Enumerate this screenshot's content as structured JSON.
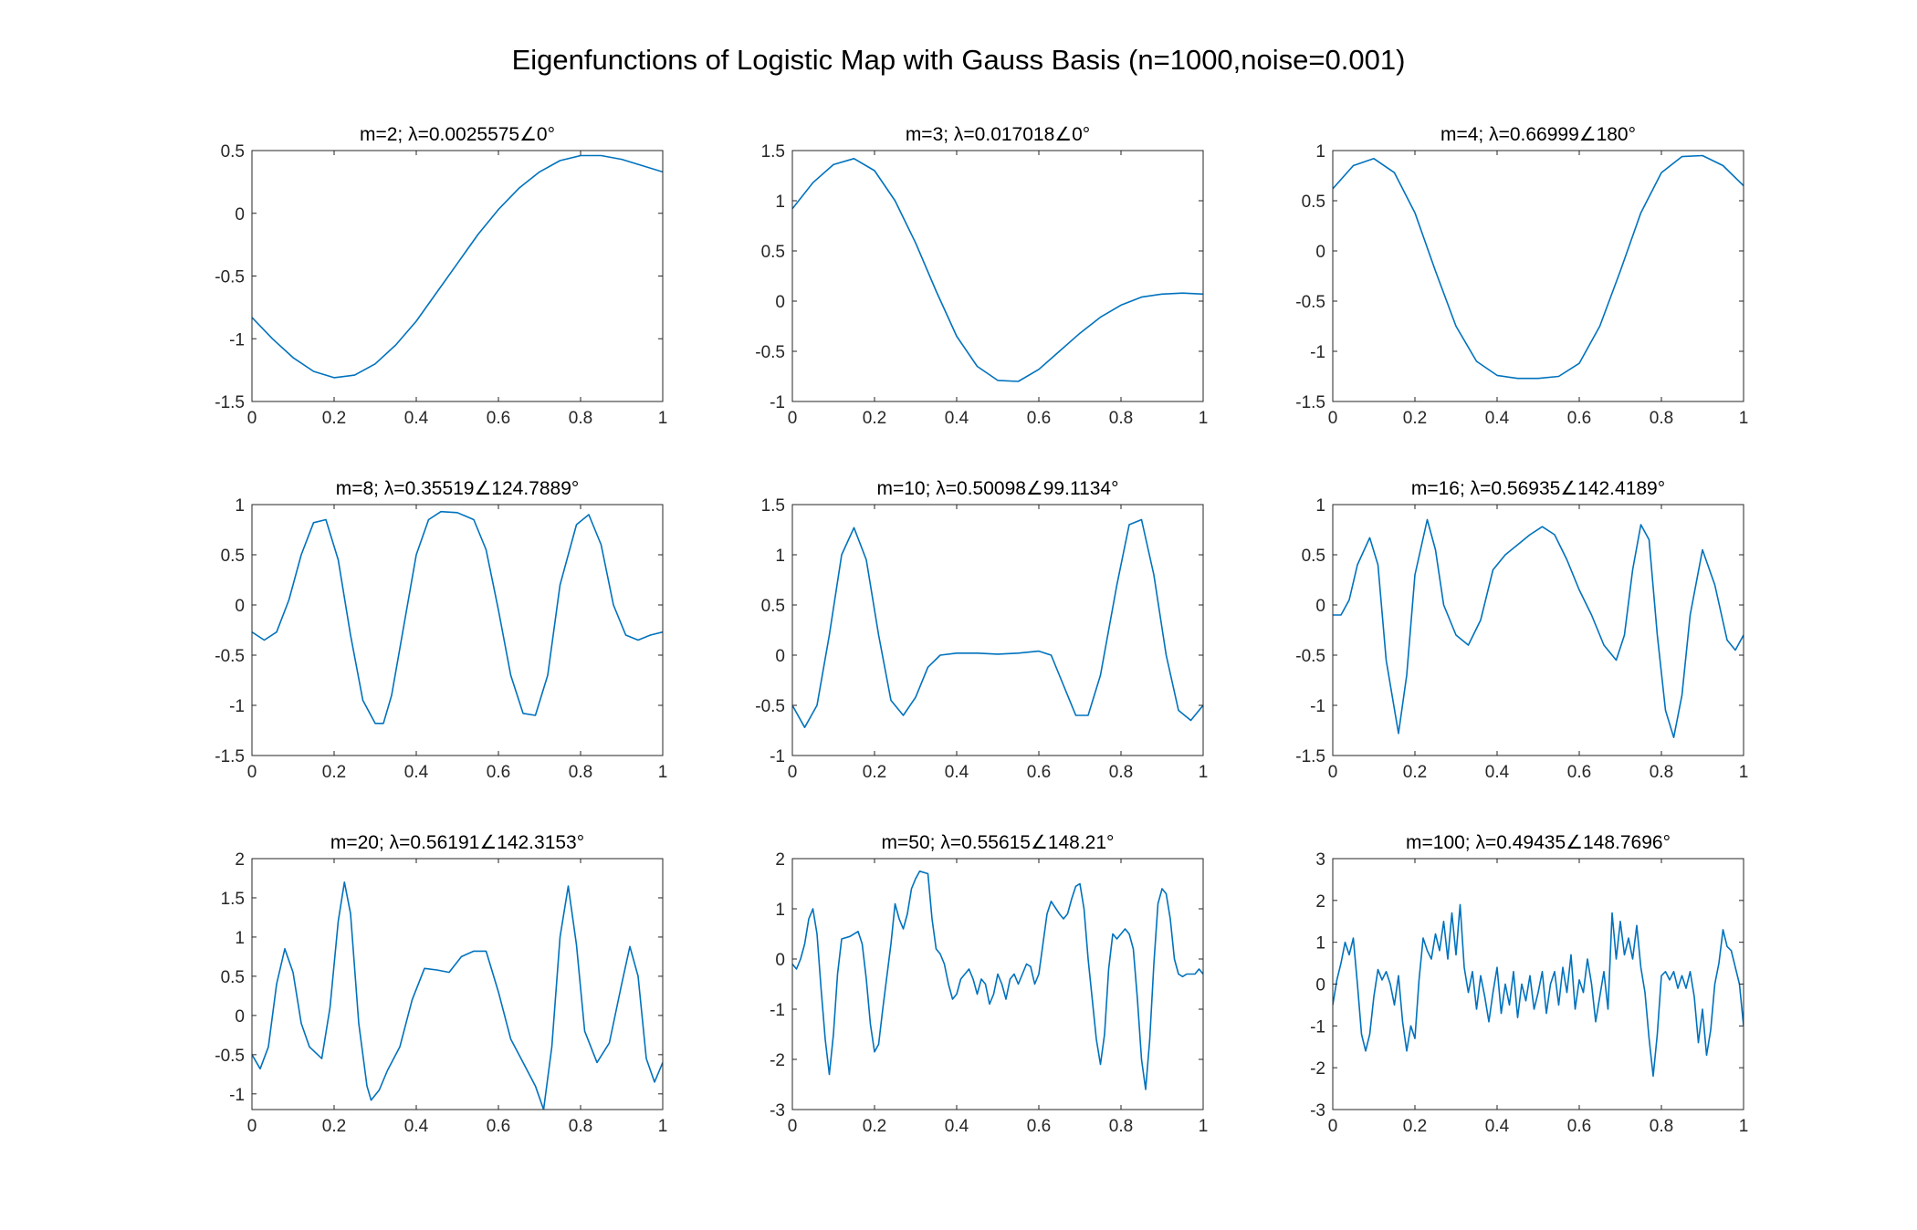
{
  "title": "Eigenfunctions of Logistic Map with Gauss Basis (n=1000,noise=0.001)",
  "colors": {
    "line": "#0072BD",
    "axis": "#262626"
  },
  "chart_data": [
    {
      "type": "line",
      "title": "m=2; λ=0.0025575∠0°",
      "xlim": [
        0,
        1
      ],
      "ylim": [
        -1.5,
        0.5
      ],
      "xticks": [
        "0",
        "0.2",
        "0.4",
        "0.6",
        "0.8",
        "1"
      ],
      "yticks": [
        "0.5",
        "0",
        "-0.5",
        "-1",
        "-1.5"
      ],
      "x": [
        0,
        0.05,
        0.1,
        0.15,
        0.2,
        0.25,
        0.3,
        0.35,
        0.4,
        0.45,
        0.5,
        0.55,
        0.6,
        0.65,
        0.7,
        0.75,
        0.8,
        0.85,
        0.9,
        0.95,
        1
      ],
      "y": [
        -0.83,
        -1.0,
        -1.15,
        -1.26,
        -1.31,
        -1.29,
        -1.2,
        -1.05,
        -0.86,
        -0.63,
        -0.4,
        -0.17,
        0.03,
        0.2,
        0.33,
        0.42,
        0.46,
        0.46,
        0.43,
        0.38,
        0.33
      ]
    },
    {
      "type": "line",
      "title": "m=3; λ=0.017018∠0°",
      "xlim": [
        0,
        1
      ],
      "ylim": [
        -1,
        1.5
      ],
      "xticks": [
        "0",
        "0.2",
        "0.4",
        "0.6",
        "0.8",
        "1"
      ],
      "yticks": [
        "1.5",
        "1",
        "0.5",
        "0",
        "-0.5",
        "-1"
      ],
      "x": [
        0,
        0.05,
        0.1,
        0.15,
        0.2,
        0.25,
        0.3,
        0.35,
        0.4,
        0.45,
        0.5,
        0.55,
        0.6,
        0.65,
        0.7,
        0.75,
        0.8,
        0.85,
        0.9,
        0.95,
        1
      ],
      "y": [
        0.92,
        1.18,
        1.36,
        1.42,
        1.3,
        1.0,
        0.58,
        0.1,
        -0.35,
        -0.65,
        -0.79,
        -0.8,
        -0.68,
        -0.5,
        -0.32,
        -0.16,
        -0.04,
        0.04,
        0.07,
        0.08,
        0.07
      ]
    },
    {
      "type": "line",
      "title": "m=4; λ=0.66999∠180°",
      "xlim": [
        0,
        1
      ],
      "ylim": [
        -1.5,
        1
      ],
      "xticks": [
        "0",
        "0.2",
        "0.4",
        "0.6",
        "0.8",
        "1"
      ],
      "yticks": [
        "1",
        "0.5",
        "0",
        "-0.5",
        "-1",
        "-1.5"
      ],
      "x": [
        0,
        0.05,
        0.1,
        0.15,
        0.2,
        0.25,
        0.3,
        0.35,
        0.4,
        0.45,
        0.5,
        0.55,
        0.6,
        0.65,
        0.7,
        0.75,
        0.8,
        0.85,
        0.9,
        0.95,
        1
      ],
      "y": [
        0.62,
        0.85,
        0.92,
        0.78,
        0.38,
        -0.2,
        -0.75,
        -1.1,
        -1.24,
        -1.27,
        -1.27,
        -1.25,
        -1.12,
        -0.75,
        -0.2,
        0.38,
        0.78,
        0.94,
        0.95,
        0.85,
        0.65
      ]
    },
    {
      "type": "line",
      "title": "m=8; λ=0.35519∠124.7889°",
      "xlim": [
        0,
        1
      ],
      "ylim": [
        -1.5,
        1
      ],
      "xticks": [
        "0",
        "0.2",
        "0.4",
        "0.6",
        "0.8",
        "1"
      ],
      "yticks": [
        "1",
        "0.5",
        "0",
        "-0.5",
        "-1",
        "-1.5"
      ],
      "x": [
        0,
        0.03,
        0.06,
        0.09,
        0.12,
        0.15,
        0.18,
        0.21,
        0.24,
        0.27,
        0.3,
        0.32,
        0.34,
        0.37,
        0.4,
        0.43,
        0.46,
        0.5,
        0.54,
        0.57,
        0.6,
        0.63,
        0.66,
        0.69,
        0.72,
        0.75,
        0.79,
        0.82,
        0.85,
        0.88,
        0.91,
        0.94,
        0.97,
        1
      ],
      "y": [
        -0.27,
        -0.35,
        -0.27,
        0.05,
        0.5,
        0.82,
        0.85,
        0.45,
        -0.3,
        -0.95,
        -1.18,
        -1.18,
        -0.9,
        -0.2,
        0.5,
        0.85,
        0.93,
        0.92,
        0.85,
        0.55,
        -0.05,
        -0.7,
        -1.08,
        -1.1,
        -0.7,
        0.2,
        0.8,
        0.9,
        0.6,
        0.0,
        -0.3,
        -0.35,
        -0.3,
        -0.27
      ]
    },
    {
      "type": "line",
      "title": "m=10; λ=0.50098∠99.1134°",
      "xlim": [
        0,
        1
      ],
      "ylim": [
        -1,
        1.5
      ],
      "xticks": [
        "0",
        "0.2",
        "0.4",
        "0.6",
        "0.8",
        "1"
      ],
      "yticks": [
        "1.5",
        "1",
        "0.5",
        "0",
        "-0.5",
        "-1"
      ],
      "x": [
        0,
        0.03,
        0.06,
        0.09,
        0.12,
        0.15,
        0.18,
        0.21,
        0.24,
        0.27,
        0.3,
        0.33,
        0.36,
        0.4,
        0.45,
        0.5,
        0.55,
        0.6,
        0.63,
        0.66,
        0.69,
        0.72,
        0.75,
        0.79,
        0.82,
        0.85,
        0.88,
        0.91,
        0.94,
        0.97,
        1
      ],
      "y": [
        -0.5,
        -0.72,
        -0.5,
        0.2,
        1.0,
        1.27,
        0.95,
        0.2,
        -0.45,
        -0.6,
        -0.42,
        -0.12,
        0.0,
        0.02,
        0.02,
        0.01,
        0.02,
        0.04,
        0.0,
        -0.3,
        -0.6,
        -0.6,
        -0.2,
        0.7,
        1.3,
        1.35,
        0.8,
        0.0,
        -0.55,
        -0.65,
        -0.5
      ]
    },
    {
      "type": "line",
      "title": "m=16; λ=0.56935∠142.4189°",
      "xlim": [
        0,
        1
      ],
      "ylim": [
        -1.5,
        1
      ],
      "xticks": [
        "0",
        "0.2",
        "0.4",
        "0.6",
        "0.8",
        "1"
      ],
      "yticks": [
        "1",
        "0.5",
        "0",
        "-0.5",
        "-1",
        "-1.5"
      ],
      "x": [
        0,
        0.02,
        0.04,
        0.06,
        0.09,
        0.11,
        0.13,
        0.16,
        0.18,
        0.2,
        0.23,
        0.25,
        0.27,
        0.3,
        0.33,
        0.36,
        0.39,
        0.42,
        0.45,
        0.48,
        0.51,
        0.54,
        0.57,
        0.6,
        0.63,
        0.66,
        0.69,
        0.71,
        0.73,
        0.75,
        0.77,
        0.79,
        0.81,
        0.83,
        0.85,
        0.87,
        0.9,
        0.93,
        0.96,
        0.98,
        1
      ],
      "y": [
        -0.1,
        -0.1,
        0.05,
        0.4,
        0.67,
        0.4,
        -0.55,
        -1.28,
        -0.7,
        0.3,
        0.85,
        0.55,
        0.0,
        -0.3,
        -0.4,
        -0.15,
        0.35,
        0.5,
        0.6,
        0.7,
        0.78,
        0.7,
        0.45,
        0.15,
        -0.1,
        -0.4,
        -0.55,
        -0.3,
        0.35,
        0.8,
        0.65,
        -0.3,
        -1.05,
        -1.32,
        -0.9,
        -0.1,
        0.55,
        0.2,
        -0.35,
        -0.45,
        -0.3
      ]
    },
    {
      "type": "line",
      "title": "m=20; λ=0.56191∠142.3153°",
      "xlim": [
        0,
        1
      ],
      "ylim": [
        -1.2,
        2
      ],
      "xticks": [
        "0",
        "0.2",
        "0.4",
        "0.6",
        "0.8",
        "1"
      ],
      "yticks": [
        "2",
        "1.5",
        "1",
        "0.5",
        "0",
        "-0.5",
        "-1"
      ],
      "x": [
        0,
        0.02,
        0.04,
        0.06,
        0.08,
        0.1,
        0.12,
        0.14,
        0.17,
        0.19,
        0.21,
        0.225,
        0.24,
        0.26,
        0.28,
        0.29,
        0.31,
        0.33,
        0.36,
        0.39,
        0.42,
        0.45,
        0.48,
        0.51,
        0.54,
        0.57,
        0.6,
        0.63,
        0.66,
        0.69,
        0.71,
        0.73,
        0.75,
        0.77,
        0.79,
        0.81,
        0.84,
        0.87,
        0.9,
        0.92,
        0.94,
        0.96,
        0.98,
        1
      ],
      "y": [
        -0.5,
        -0.68,
        -0.4,
        0.4,
        0.85,
        0.55,
        -0.1,
        -0.4,
        -0.55,
        0.1,
        1.2,
        1.7,
        1.3,
        -0.1,
        -0.9,
        -1.08,
        -0.95,
        -0.7,
        -0.4,
        0.2,
        0.6,
        0.58,
        0.55,
        0.75,
        0.82,
        0.82,
        0.3,
        -0.3,
        -0.6,
        -0.9,
        -1.2,
        -0.4,
        1.0,
        1.65,
        0.9,
        -0.2,
        -0.6,
        -0.35,
        0.4,
        0.88,
        0.5,
        -0.55,
        -0.85,
        -0.6
      ]
    },
    {
      "type": "line",
      "title": "m=50; λ=0.55615∠148.21°",
      "xlim": [
        0,
        1
      ],
      "ylim": [
        -3,
        2
      ],
      "xticks": [
        "0",
        "0.2",
        "0.4",
        "0.6",
        "0.8",
        "1"
      ],
      "yticks": [
        "2",
        "1",
        "0",
        "-1",
        "-2",
        "-3"
      ],
      "x": [
        0,
        0.01,
        0.02,
        0.03,
        0.04,
        0.05,
        0.06,
        0.07,
        0.08,
        0.09,
        0.1,
        0.11,
        0.12,
        0.14,
        0.16,
        0.17,
        0.18,
        0.19,
        0.2,
        0.21,
        0.22,
        0.24,
        0.25,
        0.26,
        0.27,
        0.28,
        0.29,
        0.3,
        0.31,
        0.33,
        0.34,
        0.35,
        0.36,
        0.37,
        0.38,
        0.39,
        0.4,
        0.41,
        0.42,
        0.43,
        0.44,
        0.45,
        0.46,
        0.47,
        0.48,
        0.49,
        0.5,
        0.51,
        0.52,
        0.53,
        0.54,
        0.55,
        0.56,
        0.57,
        0.58,
        0.59,
        0.6,
        0.61,
        0.62,
        0.63,
        0.65,
        0.66,
        0.67,
        0.68,
        0.69,
        0.7,
        0.71,
        0.72,
        0.74,
        0.75,
        0.76,
        0.77,
        0.78,
        0.79,
        0.8,
        0.81,
        0.82,
        0.83,
        0.84,
        0.85,
        0.86,
        0.87,
        0.88,
        0.89,
        0.9,
        0.91,
        0.92,
        0.93,
        0.94,
        0.95,
        0.96,
        0.97,
        0.98,
        0.99,
        1
      ],
      "y": [
        -0.1,
        -0.2,
        0.0,
        0.3,
        0.8,
        1.0,
        0.5,
        -0.6,
        -1.6,
        -2.3,
        -1.5,
        -0.3,
        0.4,
        0.45,
        0.55,
        0.3,
        -0.4,
        -1.3,
        -1.85,
        -1.7,
        -1.0,
        0.3,
        1.1,
        0.8,
        0.6,
        0.9,
        1.4,
        1.6,
        1.75,
        1.7,
        0.8,
        0.2,
        0.1,
        -0.1,
        -0.5,
        -0.8,
        -0.7,
        -0.4,
        -0.3,
        -0.2,
        -0.4,
        -0.7,
        -0.4,
        -0.5,
        -0.9,
        -0.7,
        -0.3,
        -0.5,
        -0.8,
        -0.4,
        -0.3,
        -0.5,
        -0.3,
        -0.1,
        -0.15,
        -0.5,
        -0.3,
        0.3,
        0.9,
        1.15,
        0.9,
        0.8,
        0.9,
        1.2,
        1.45,
        1.5,
        1.0,
        0.0,
        -1.6,
        -2.1,
        -1.5,
        -0.2,
        0.5,
        0.4,
        0.5,
        0.6,
        0.5,
        0.2,
        -0.8,
        -2.0,
        -2.6,
        -1.6,
        -0.1,
        1.1,
        1.4,
        1.3,
        0.8,
        0.0,
        -0.3,
        -0.35,
        -0.3,
        -0.3,
        -0.3,
        -0.2,
        -0.3
      ]
    },
    {
      "type": "line",
      "title": "m=100; λ=0.49435∠148.7696°",
      "xlim": [
        0,
        1
      ],
      "ylim": [
        -3,
        3
      ],
      "xticks": [
        "0",
        "0.2",
        "0.4",
        "0.6",
        "0.8",
        "1"
      ],
      "yticks": [
        "3",
        "2",
        "1",
        "0",
        "-1",
        "-2",
        "-3"
      ],
      "x": [
        0,
        0.01,
        0.02,
        0.03,
        0.04,
        0.05,
        0.06,
        0.07,
        0.08,
        0.09,
        0.1,
        0.11,
        0.12,
        0.13,
        0.14,
        0.15,
        0.16,
        0.17,
        0.18,
        0.19,
        0.2,
        0.21,
        0.22,
        0.23,
        0.24,
        0.25,
        0.26,
        0.27,
        0.28,
        0.29,
        0.3,
        0.31,
        0.32,
        0.33,
        0.34,
        0.35,
        0.36,
        0.37,
        0.38,
        0.39,
        0.4,
        0.41,
        0.42,
        0.43,
        0.44,
        0.45,
        0.46,
        0.47,
        0.48,
        0.49,
        0.5,
        0.51,
        0.52,
        0.53,
        0.54,
        0.55,
        0.56,
        0.57,
        0.58,
        0.59,
        0.6,
        0.61,
        0.62,
        0.63,
        0.64,
        0.65,
        0.66,
        0.67,
        0.68,
        0.69,
        0.7,
        0.71,
        0.72,
        0.73,
        0.74,
        0.75,
        0.76,
        0.77,
        0.78,
        0.79,
        0.8,
        0.81,
        0.82,
        0.83,
        0.84,
        0.85,
        0.86,
        0.87,
        0.88,
        0.89,
        0.9,
        0.91,
        0.92,
        0.93,
        0.94,
        0.95,
        0.96,
        0.97,
        0.98,
        0.99,
        1
      ],
      "y": [
        -0.5,
        0.1,
        0.5,
        1.0,
        0.7,
        1.1,
        0.0,
        -1.2,
        -1.6,
        -1.2,
        -0.3,
        0.35,
        0.1,
        0.3,
        0.0,
        -0.5,
        0.2,
        -0.9,
        -1.6,
        -1.0,
        -1.3,
        0.1,
        1.1,
        0.8,
        0.6,
        1.2,
        0.8,
        1.5,
        0.6,
        1.7,
        0.7,
        1.9,
        0.4,
        -0.2,
        0.3,
        -0.6,
        0.2,
        -0.3,
        -0.9,
        -0.2,
        0.4,
        -0.7,
        0.0,
        -0.5,
        0.3,
        -0.8,
        0.0,
        -0.4,
        0.2,
        -0.6,
        -0.2,
        0.3,
        -0.7,
        0.0,
        0.3,
        -0.5,
        0.4,
        -0.2,
        0.7,
        -0.6,
        0.1,
        -0.2,
        0.6,
        0.0,
        -0.9,
        -0.3,
        0.3,
        -0.6,
        1.7,
        0.6,
        1.5,
        0.7,
        1.1,
        0.6,
        1.4,
        0.4,
        -0.2,
        -1.3,
        -2.2,
        -1.2,
        0.2,
        0.3,
        0.1,
        0.3,
        -0.1,
        0.2,
        -0.1,
        0.3,
        -0.3,
        -1.4,
        -0.6,
        -1.7,
        -1.1,
        0.0,
        0.5,
        1.3,
        0.9,
        0.8,
        0.4,
        0.0,
        -1.0
      ]
    }
  ]
}
